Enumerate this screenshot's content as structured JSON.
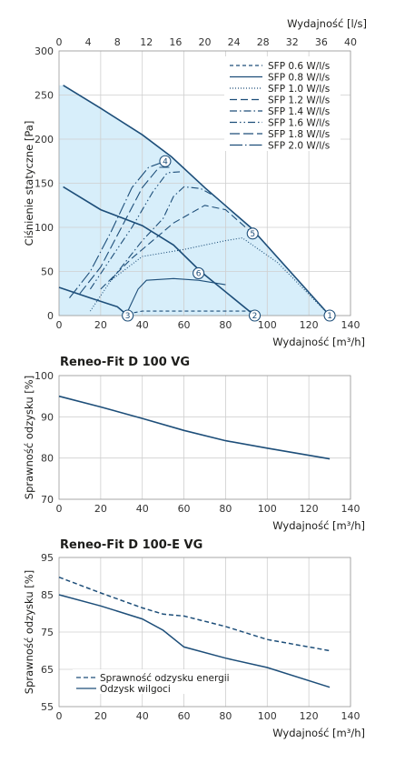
{
  "chart_data": [
    {
      "type": "line",
      "title": "",
      "xlabel": "Wydajność [m³/h]",
      "ylabel": "Ciśnienie statyczne [Pa]",
      "x2label": "Wydajność [l/s]",
      "xlim": [
        0,
        140
      ],
      "ylim": [
        0,
        300
      ],
      "x2lim": [
        0,
        40
      ],
      "xticks": [
        0,
        20,
        40,
        60,
        80,
        100,
        120,
        140
      ],
      "yticks": [
        0,
        50,
        100,
        150,
        200,
        250,
        300
      ],
      "x2ticks": [
        0,
        4,
        8,
        12,
        16,
        20,
        24,
        28,
        32,
        36,
        40
      ],
      "grid": true,
      "legend": "top-right",
      "colors": {
        "curve": "#1d4e79",
        "fill": "#d7eefa",
        "grid": "#c8c8c8"
      },
      "fan_curves": [
        {
          "name": "upper",
          "x": [
            2,
            20,
            40,
            54,
            70,
            92,
            130
          ],
          "y": [
            261,
            235,
            205,
            180,
            145,
            100,
            0
          ]
        },
        {
          "name": "middle",
          "x": [
            2,
            20,
            40,
            55,
            68,
            94
          ],
          "y": [
            146,
            120,
            102,
            80,
            50,
            0
          ]
        },
        {
          "name": "lower",
          "x": [
            0,
            15,
            28,
            33
          ],
          "y": [
            32,
            20,
            10,
            0
          ]
        }
      ],
      "operating_points": [
        {
          "label": "1",
          "x": 130,
          "y": 0
        },
        {
          "label": "2",
          "x": 94,
          "y": 0
        },
        {
          "label": "3",
          "x": 33,
          "y": 0
        },
        {
          "label": "4",
          "x": 51,
          "y": 175
        },
        {
          "label": "5",
          "x": 93,
          "y": 93
        },
        {
          "label": "6",
          "x": 67,
          "y": 48
        }
      ],
      "series": [
        {
          "name": "SFP 0.6 W/l/s",
          "dash": "4,3",
          "x": [
            33,
            40,
            55,
            75,
            94
          ],
          "y": [
            2,
            5,
            5,
            5,
            5
          ]
        },
        {
          "name": "SFP 0.8 W/l/s",
          "dash": "none",
          "x": [
            33,
            38,
            42,
            55,
            67,
            80
          ],
          "y": [
            5,
            30,
            40,
            42,
            40,
            35
          ]
        },
        {
          "name": "SFP 1.0 W/l/s",
          "dash": "1,2",
          "x": [
            15,
            25,
            40,
            60,
            80,
            88,
            105,
            130
          ],
          "y": [
            5,
            40,
            67,
            75,
            85,
            88,
            60,
            0
          ]
        },
        {
          "name": "SFP 1.2 W/l/s",
          "dash": "8,4",
          "x": [
            20,
            35,
            45,
            55,
            70,
            80,
            93
          ],
          "y": [
            30,
            65,
            85,
            105,
            125,
            120,
            93
          ]
        },
        {
          "name": "SFP 1.4 W/l/s",
          "dash": "8,3,1.5,3",
          "x": [
            25,
            40,
            50,
            55,
            60,
            68,
            75
          ],
          "y": [
            40,
            85,
            110,
            135,
            146,
            144,
            135
          ]
        },
        {
          "name": "SFP 1.6 W/l/s",
          "dash": "8,3,1.5,3,1.5,3",
          "x": [
            15,
            25,
            35,
            45,
            52,
            58
          ],
          "y": [
            30,
            65,
            100,
            140,
            162,
            163
          ]
        },
        {
          "name": "SFP 1.8 W/l/s",
          "dash": "11,4",
          "x": [
            10,
            20,
            30,
            40,
            48,
            53
          ],
          "y": [
            25,
            55,
            100,
            145,
            168,
            168
          ]
        },
        {
          "name": "SFP 2.0 W/l/s",
          "dash": "14,3,1.5,3",
          "x": [
            5,
            15,
            25,
            35,
            43,
            51
          ],
          "y": [
            20,
            50,
            95,
            145,
            168,
            175
          ]
        }
      ]
    },
    {
      "type": "line",
      "title": "Reneo-Fit D 100 VG",
      "xlabel": "Wydajność [m³/h]",
      "ylabel": "Sprawność odzysku [%]",
      "xlim": [
        0,
        140
      ],
      "ylim": [
        70,
        100
      ],
      "xticks": [
        0,
        20,
        40,
        60,
        80,
        100,
        120,
        140
      ],
      "yticks": [
        70,
        80,
        90,
        100
      ],
      "grid": true,
      "series": [
        {
          "x": [
            0,
            20,
            40,
            60,
            80,
            100,
            130
          ],
          "y": [
            95,
            92.4,
            89.6,
            86.7,
            84.2,
            82.4,
            79.8
          ]
        }
      ]
    },
    {
      "type": "line",
      "title": "Reneo-Fit D 100-E VG",
      "xlabel": "Wydajność [m³/h]",
      "ylabel": "Sprawność odzysku [%]",
      "xlim": [
        0,
        140
      ],
      "ylim": [
        55,
        95
      ],
      "xticks": [
        0,
        20,
        40,
        60,
        80,
        100,
        120,
        140
      ],
      "yticks": [
        55,
        65,
        75,
        85,
        95
      ],
      "grid": true,
      "legend": "bottom-left",
      "series": [
        {
          "name": "Sprawność odzysku energii",
          "dash": "5,3",
          "x": [
            0,
            20,
            40,
            50,
            60,
            80,
            100,
            130
          ],
          "y": [
            89.7,
            85.5,
            81.5,
            79.8,
            79.3,
            76.5,
            73,
            70
          ]
        },
        {
          "name": "Odzysk wilgoci",
          "dash": "none",
          "x": [
            0,
            20,
            40,
            50,
            60,
            80,
            100,
            130
          ],
          "y": [
            85,
            82,
            78.5,
            75.5,
            71,
            68,
            65.5,
            60.2
          ]
        }
      ]
    }
  ]
}
